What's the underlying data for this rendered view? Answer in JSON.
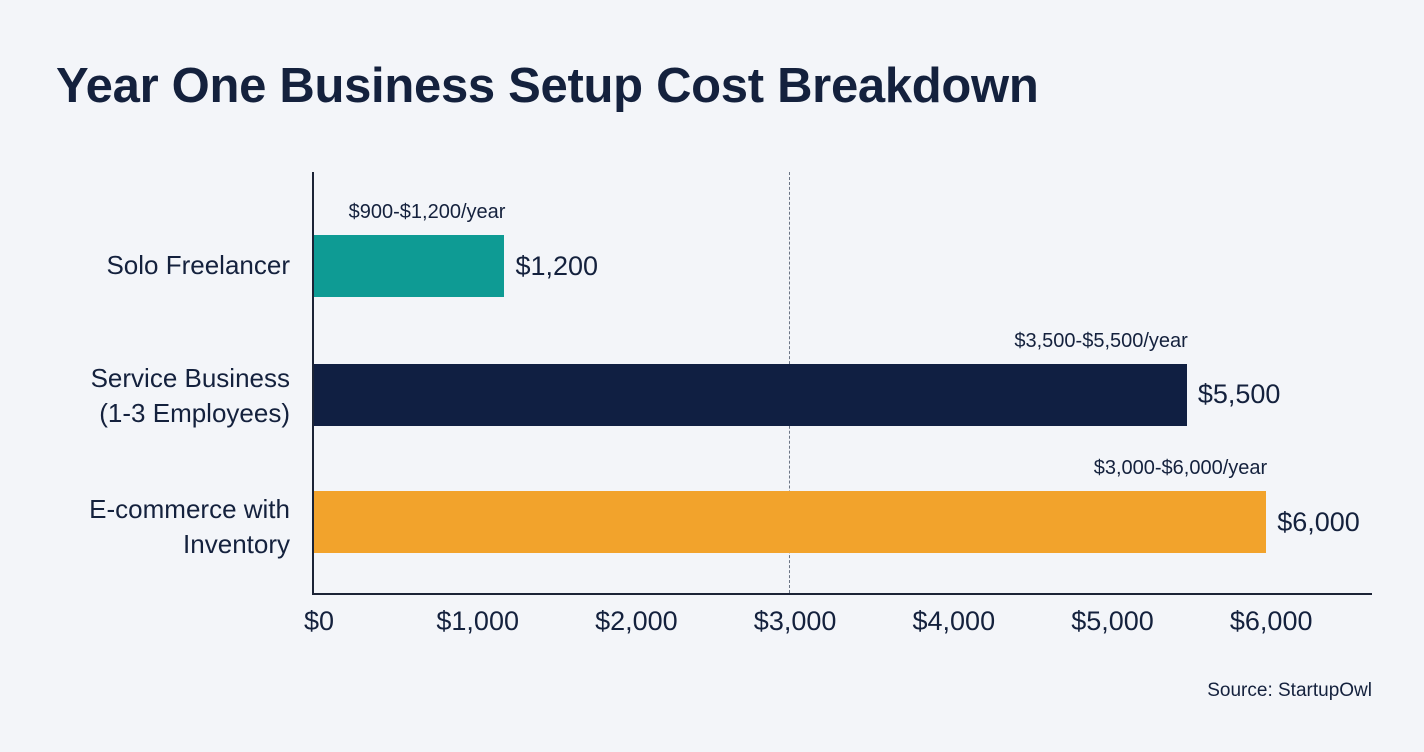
{
  "title": "Year One Business Setup Cost Breakdown",
  "source": "Source: StartupOwl",
  "colors": {
    "background": "#f3f5f9",
    "text": "#14213d",
    "solo_freelancer": "#0e9b94",
    "service_business": "#101f42",
    "ecommerce": "#f2a32c",
    "axis": "#1b2336",
    "reference_line": "#6b7585"
  },
  "chart_data": {
    "type": "bar",
    "orientation": "horizontal",
    "title": "Year One Business Setup Cost Breakdown",
    "xlabel": "",
    "ylabel": "",
    "xlim": [
      0,
      6650
    ],
    "categories": [
      "Solo Freelancer",
      "Service Business (1-3 Employees)",
      "E-commerce with Inventory"
    ],
    "values": [
      1200,
      5500,
      6000
    ],
    "value_labels": [
      "$1,200",
      "$5,500",
      "$6,000"
    ],
    "range_labels": [
      "$900-$1,200/year",
      "$3,500-$5,500/year",
      "$3,000-$6,000/year"
    ],
    "ranges": [
      [
        900,
        1200
      ],
      [
        3500,
        5500
      ],
      [
        3000,
        6000
      ]
    ],
    "bar_colors": [
      "#0e9b94",
      "#101f42",
      "#f2a32c"
    ],
    "x_ticks": [
      0,
      1000,
      2000,
      3000,
      4000,
      5000,
      6000
    ],
    "x_tick_labels": [
      "$0",
      "$1,000",
      "$2,000",
      "$3,000",
      "$4,000",
      "$5,000",
      "$6,000"
    ],
    "reference_line": {
      "x": 3000,
      "style": "dashed"
    },
    "grid": false,
    "legend": "none",
    "annotation": "Source: StartupOwl"
  },
  "categories": [
    {
      "line1": "Solo Freelancer",
      "line2": "",
      "value_label": "$1,200",
      "range_label": "$900-$1,200/year"
    },
    {
      "line1": "Service Business",
      "line2": "(1-3 Employees)",
      "value_label": "$5,500",
      "range_label": "$3,500-$5,500/year"
    },
    {
      "line1": "E-commerce with",
      "line2": "Inventory",
      "value_label": "$6,000",
      "range_label": "$3,000-$6,000/year"
    }
  ],
  "x_axis": {
    "ticks": [
      "$0",
      "$1,000",
      "$2,000",
      "$3,000",
      "$4,000",
      "$5,000",
      "$6,000"
    ]
  }
}
